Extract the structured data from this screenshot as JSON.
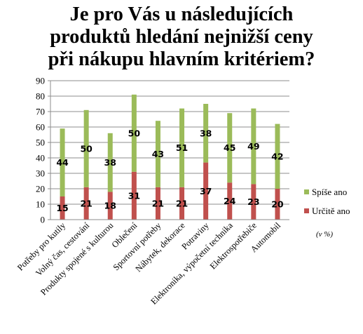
{
  "chart_data": {
    "type": "bar",
    "stacked": true,
    "title_lines": [
      "Je pro Vás u následujících",
      "produktů hledání nejnižší ceny",
      "při nákupu hlavním kritériem?"
    ],
    "categories": [
      "Potřeby pro kutily",
      "Volný čas, cestování",
      "Produkty spojené s kulturou",
      "Oblečení",
      "Sportovní potřeby",
      "Nábytek, dekorace",
      "Potraviny",
      "Elektronika, výpočetní technika",
      "Elektrospotřebiče",
      "Automobil"
    ],
    "series": [
      {
        "name": "Určitě ano",
        "color": "#c0504d",
        "values": [
          15,
          21,
          18,
          31,
          21,
          21,
          37,
          24,
          23,
          20
        ]
      },
      {
        "name": "Spíše ano",
        "color": "#9bbb59",
        "values": [
          44,
          50,
          38,
          50,
          43,
          51,
          38,
          45,
          49,
          42
        ]
      }
    ],
    "ylim": [
      0,
      90
    ],
    "yticks": [
      "0",
      "10",
      "20",
      "30",
      "40",
      "50",
      "60",
      "70",
      "80",
      "90"
    ],
    "grid": true,
    "legend_position": "right",
    "unit_note": "(v %)"
  }
}
